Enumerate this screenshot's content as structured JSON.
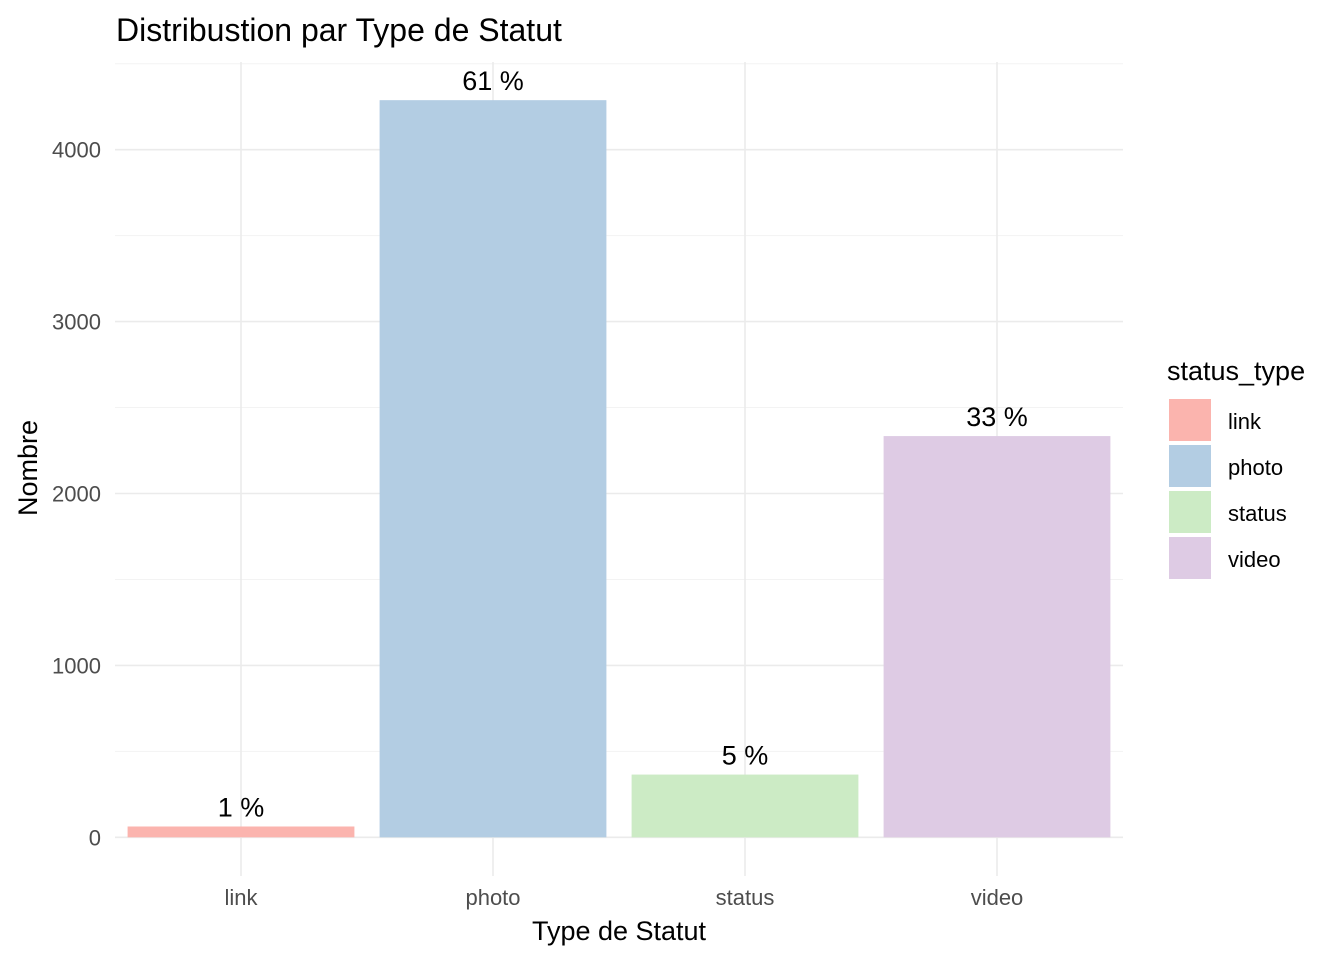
{
  "chart_data": {
    "type": "bar",
    "title": "Distribustion par Type de Statut",
    "xlabel": "Type de Statut",
    "ylabel": "Nombre",
    "categories": [
      "link",
      "photo",
      "status",
      "video"
    ],
    "values": [
      63,
      4288,
      365,
      2334
    ],
    "labels": [
      "1 %",
      "61 %",
      "5 %",
      "33 %"
    ],
    "colors": [
      "#FBB4AE",
      "#B3CDE3",
      "#CCEBC5",
      "#DECBE4"
    ],
    "ylim": [
      -225,
      4510
    ],
    "yticks": [
      0,
      1000,
      2000,
      3000,
      4000
    ],
    "grid": true,
    "legend": {
      "title": "status_type",
      "position": "right",
      "entries": [
        "link",
        "photo",
        "status",
        "video"
      ]
    }
  }
}
